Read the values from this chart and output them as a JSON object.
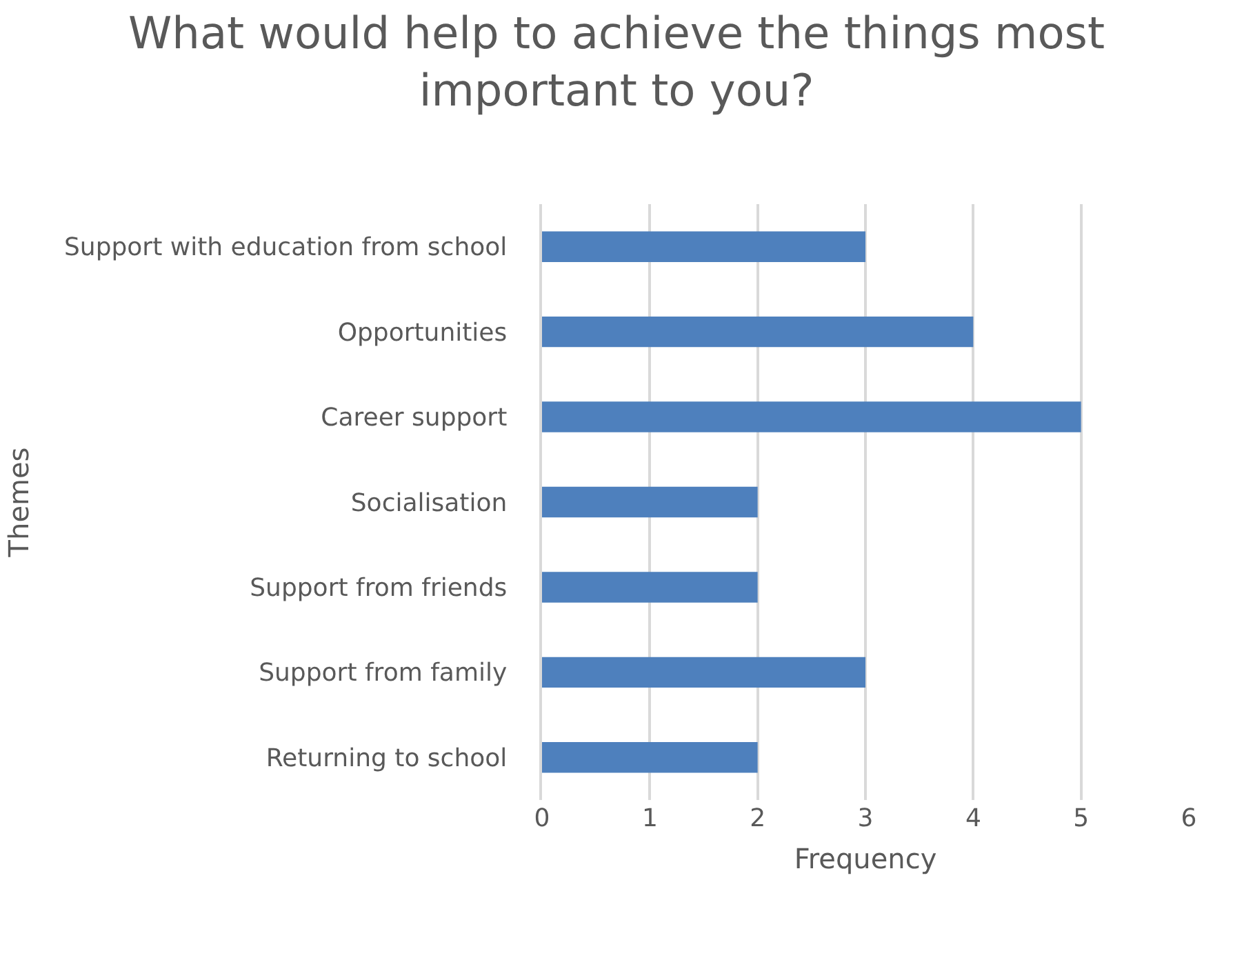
{
  "chart_data": {
    "type": "bar",
    "orientation": "horizontal",
    "title": "What would help to achieve the things most\nimportant to you?",
    "xlabel": "Frequency",
    "ylabel": "Themes",
    "categories": [
      "Support with education from school",
      "Opportunities",
      "Career support",
      "Socialisation",
      "Support from friends",
      "Support from family",
      "Returning to school"
    ],
    "values": [
      3,
      4,
      5,
      2,
      2,
      3,
      2
    ],
    "color": "#4e80bd",
    "xlim": [
      0,
      6
    ],
    "xticks": [
      0,
      1,
      2,
      3,
      4,
      5,
      6
    ],
    "grid": "x"
  }
}
